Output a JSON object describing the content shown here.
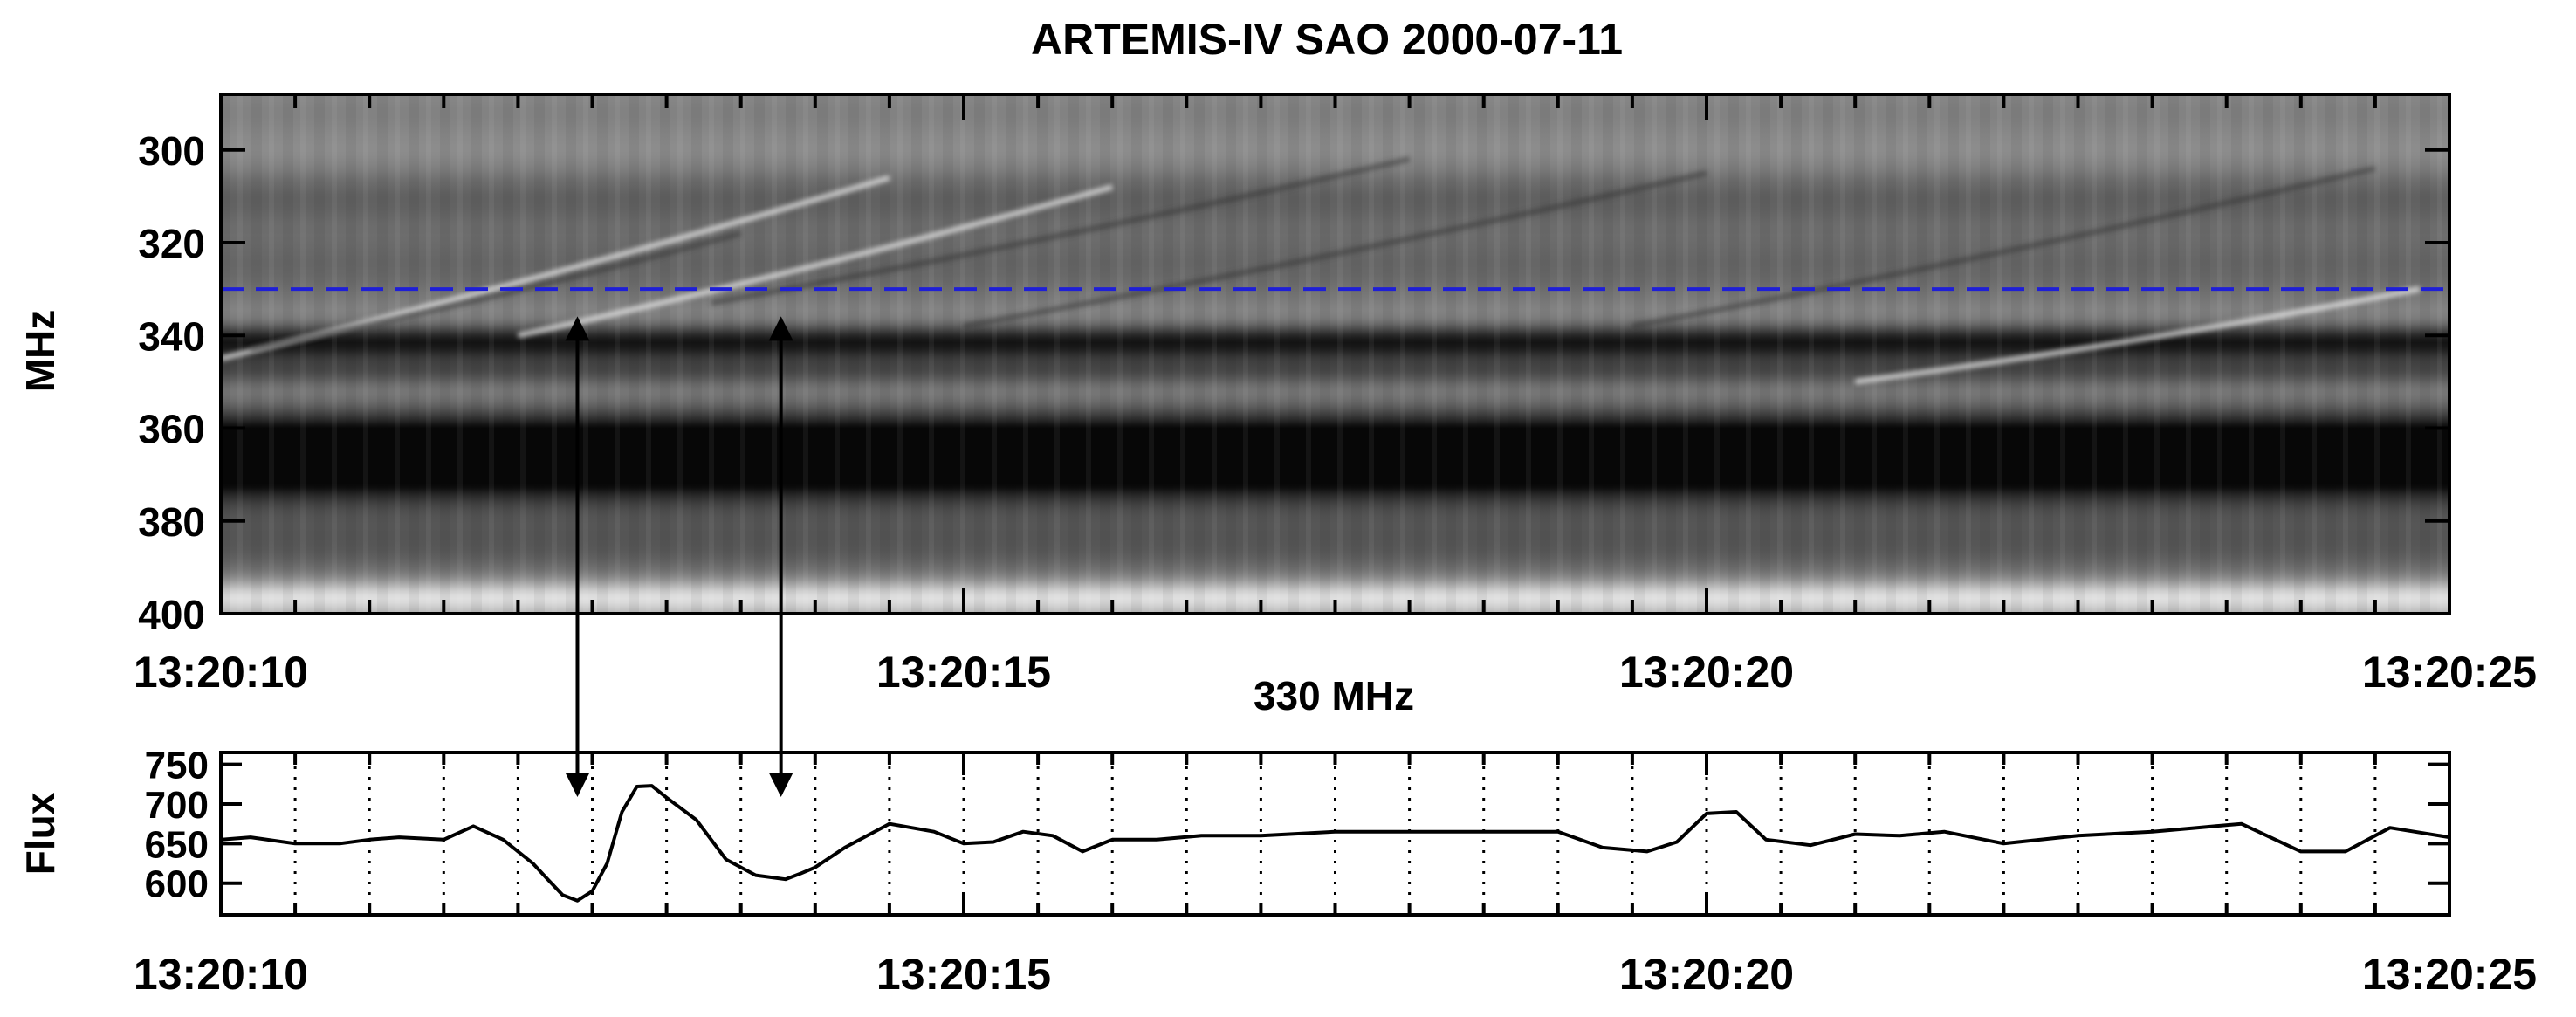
{
  "chart_data": [
    {
      "type": "heatmap",
      "title": "ARTEMIS-IV  SAO 2000-07-11",
      "ylabel": "MHz",
      "xlabel": "",
      "x_range": [
        "13:20:10",
        "13:20:25"
      ],
      "x_ticks": [
        "13:20:10",
        "13:20:15",
        "13:20:20",
        "13:20:25"
      ],
      "y_range": [
        288,
        400
      ],
      "y_reversed": true,
      "y_ticks": [
        300,
        320,
        340,
        360,
        380,
        400
      ],
      "colormap": "grayscale",
      "reference_line": {
        "frequency_mhz": 330,
        "style": "dashed",
        "color": "#1f1fd6"
      },
      "spectral_bands": [
        {
          "frequency_mhz": 366,
          "darkness": 1.0,
          "width_mhz": 6.5
        },
        {
          "frequency_mhz": 341.5,
          "darkness": 0.55,
          "width_mhz": 2.6
        },
        {
          "frequency_mhz": 347.5,
          "darkness": 0.3,
          "width_mhz": 2.5
        },
        {
          "frequency_mhz": 310,
          "darkness": 0.22,
          "width_mhz": 5
        },
        {
          "frequency_mhz": 325,
          "darkness": 0.22,
          "width_mhz": 7
        },
        {
          "frequency_mhz": 292,
          "darkness": 0.1,
          "width_mhz": 5
        },
        {
          "frequency_mhz": 385,
          "darkness": 0.28,
          "width_mhz": 6
        },
        {
          "frequency_mhz": 396.5,
          "darkness": -0.35,
          "width_mhz": 2.5
        }
      ],
      "drifting_features": [
        {
          "t_start": 10.0,
          "f_start": 345,
          "t_end": 14.5,
          "f_end": 306,
          "tone": "light"
        },
        {
          "t_start": 10.2,
          "f_start": 343,
          "t_end": 13.5,
          "f_end": 318,
          "tone": "dark"
        },
        {
          "t_start": 12.0,
          "f_start": 340,
          "t_end": 16.0,
          "f_end": 308,
          "tone": "light"
        },
        {
          "t_start": 13.3,
          "f_start": 333,
          "t_end": 18.0,
          "f_end": 302,
          "tone": "dark"
        },
        {
          "t_start": 15.0,
          "f_start": 338,
          "t_end": 20.0,
          "f_end": 305,
          "tone": "dark"
        },
        {
          "t_start": 19.5,
          "f_start": 338,
          "t_end": 24.5,
          "f_end": 304,
          "tone": "dark"
        },
        {
          "t_start": 21.0,
          "f_start": 350,
          "t_end": 24.8,
          "f_end": 330,
          "tone": "light"
        }
      ],
      "annotations": [
        {
          "type": "double-arrow",
          "t": 12.4,
          "from_mhz": 330,
          "to_flux": 745
        },
        {
          "type": "double-arrow",
          "t": 13.77,
          "from_mhz": 330,
          "to_flux": 745
        }
      ]
    },
    {
      "type": "line",
      "title": "330 MHz",
      "xlabel": "",
      "ylabel": "Flux",
      "x_range": [
        "13:20:10",
        "13:20:25"
      ],
      "x_ticks": [
        "13:20:10",
        "13:20:15",
        "13:20:20",
        "13:20:25"
      ],
      "x_minor_gridlines_seconds": 0.5,
      "ylim": [
        560,
        765
      ],
      "y_ticks": [
        600,
        650,
        700,
        750
      ],
      "series": [
        {
          "x_seconds_after_13_20_00": [
            10.0,
            10.2,
            10.5,
            10.8,
            11.0,
            11.2,
            11.5,
            11.7,
            11.9,
            12.1,
            12.2,
            12.3,
            12.4,
            12.5,
            12.6,
            12.7,
            12.8,
            12.9,
            13.0,
            13.2,
            13.4,
            13.6,
            13.8,
            13.9,
            14.0,
            14.2,
            14.5,
            14.8,
            15.0,
            15.2,
            15.4,
            15.6,
            15.8,
            16.0,
            16.3,
            16.6,
            17.0,
            17.5,
            18.0,
            18.5,
            19.0,
            19.3,
            19.6,
            19.8,
            20.0,
            20.2,
            20.4,
            20.7,
            21.0,
            21.3,
            21.6,
            22.0,
            22.5,
            23.0,
            23.3,
            23.6,
            24.0,
            24.3,
            24.6,
            25.0
          ],
          "values": [
            655,
            658,
            650,
            650,
            655,
            658,
            655,
            672,
            655,
            625,
            605,
            585,
            578,
            590,
            625,
            690,
            722,
            723,
            708,
            680,
            630,
            610,
            605,
            612,
            620,
            645,
            675,
            665,
            650,
            652,
            665,
            660,
            640,
            655,
            655,
            660,
            660,
            665,
            665,
            665,
            665,
            645,
            640,
            652,
            688,
            690,
            655,
            648,
            662,
            660,
            665,
            650,
            660,
            665,
            670,
            675,
            640,
            640,
            670,
            658
          ]
        }
      ]
    }
  ]
}
